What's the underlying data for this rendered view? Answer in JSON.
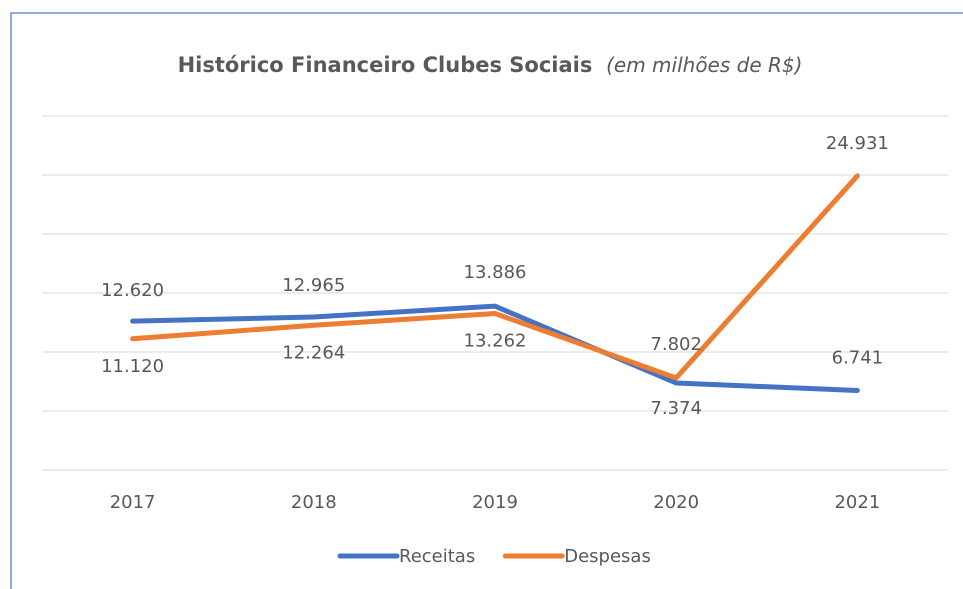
{
  "chart_data": {
    "type": "line",
    "title": "Histórico Financeiro Clubes Sociais",
    "subtitle": "(em milhões de R$)",
    "categories": [
      "2017",
      "2018",
      "2019",
      "2020",
      "2021"
    ],
    "series": [
      {
        "name": "Receitas",
        "color": "#4472c4",
        "values": [
          12620,
          12965,
          13886,
          7374,
          6741
        ],
        "value_labels": [
          "12.620",
          "12.965",
          "13.886",
          "7.374",
          "6.741"
        ]
      },
      {
        "name": "Despesas",
        "color": "#ed7d31",
        "values": [
          11120,
          12264,
          13262,
          7802,
          24931
        ],
        "value_labels": [
          "11.120",
          "12.264",
          "13.262",
          "7.802",
          "24.931"
        ]
      }
    ],
    "ylim": [
      0,
      30000
    ],
    "yticks": [
      0,
      5000,
      10000,
      15000,
      20000,
      25000,
      30000
    ],
    "grid": true,
    "legend": "bottom"
  }
}
